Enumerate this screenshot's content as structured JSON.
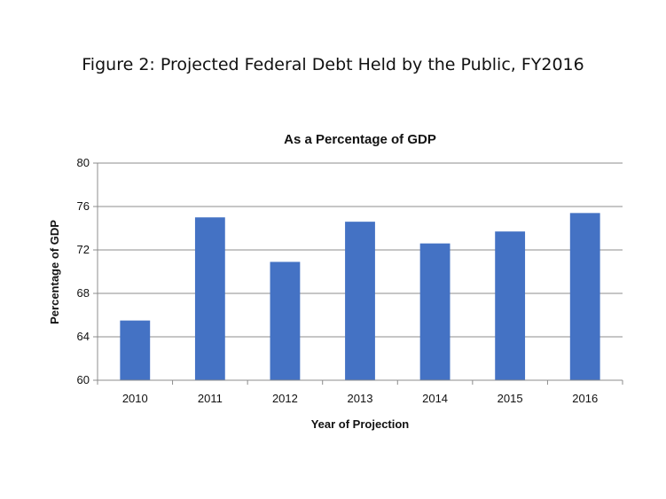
{
  "figure_title": "Figure 2: Projected Federal Debt Held by the Public, FY2016",
  "chart_data": {
    "type": "bar",
    "title": "As a Percentage of GDP",
    "xlabel": "Year of Projection",
    "ylabel": "Percentage of GDP",
    "categories": [
      "2010",
      "2011",
      "2012",
      "2013",
      "2014",
      "2015",
      "2016"
    ],
    "values": [
      65.5,
      75.0,
      70.9,
      74.6,
      72.6,
      73.7,
      75.4
    ],
    "ylim": [
      60,
      80
    ],
    "yticks": [
      60,
      64,
      68,
      72,
      76,
      80
    ],
    "bar_color": "#4472C4",
    "grid": true
  }
}
